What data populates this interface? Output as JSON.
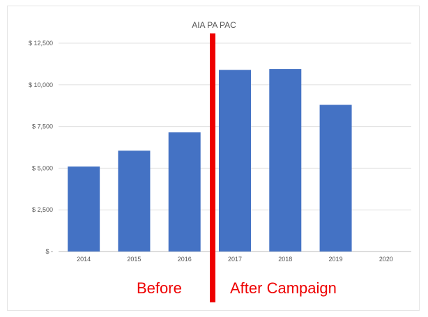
{
  "chart_data": {
    "type": "bar",
    "title": "AIA PA PAC",
    "categories": [
      "2014",
      "2015",
      "2016",
      "2017",
      "2018",
      "2019",
      "2020"
    ],
    "values": [
      5100,
      6050,
      7150,
      10900,
      10950,
      8800,
      0
    ],
    "y_ticks": [
      "$ -",
      "$ 2,500",
      "$ 5,000",
      "$ 7,500",
      "$ 10,000",
      "$ 12,500"
    ],
    "ylim": [
      0,
      12500
    ],
    "grid": true,
    "bar_color": "#4472c4",
    "annotations": {
      "divider_color": "#ee0000",
      "before_label": "Before",
      "after_label": "After Campaign"
    }
  }
}
